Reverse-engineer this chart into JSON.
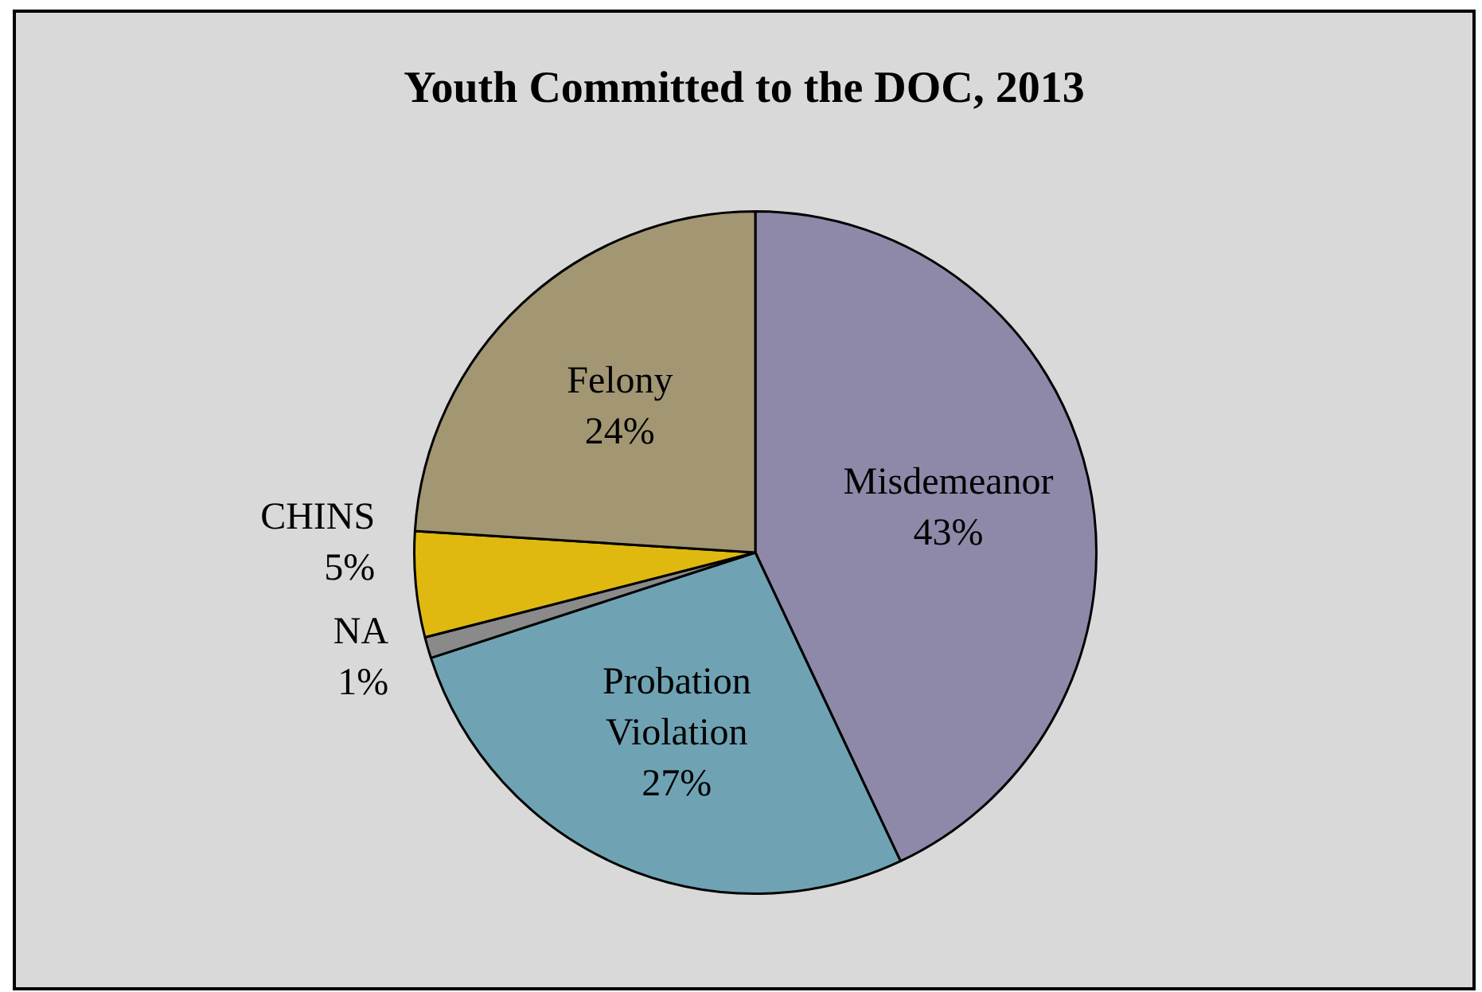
{
  "chart_data": {
    "type": "pie",
    "title": "Youth Committed to the DOC, 2013",
    "categories": [
      "Misdemeanor",
      "Probation Violation",
      "NA",
      "CHINS",
      "Felony"
    ],
    "values": [
      43,
      27,
      1,
      5,
      24
    ],
    "colors": [
      "#8e89a8",
      "#6fa3b4",
      "#8a8a8a",
      "#e0b910",
      "#a39673"
    ],
    "value_labels": [
      "43%",
      "27%",
      "1%",
      "5%",
      "24%"
    ],
    "legend": false
  }
}
